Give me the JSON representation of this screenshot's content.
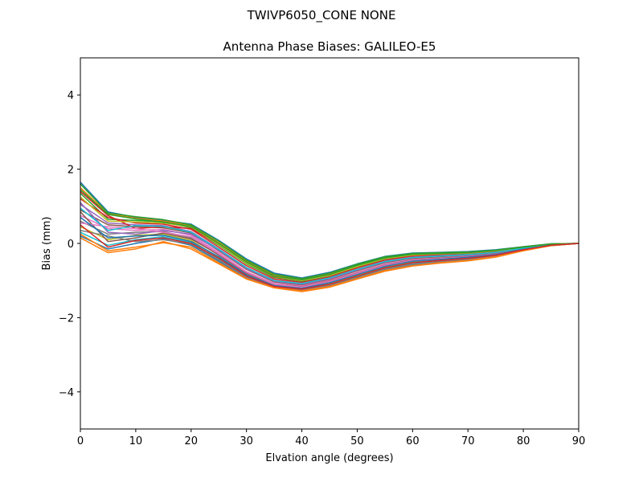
{
  "chart_data": {
    "type": "line",
    "suptitle": "TWIVP6050_CONE  NONE",
    "title": "Antenna Phase Biases: GALILEO-E5",
    "xlabel": "Elvation angle (degrees)",
    "ylabel": "Bias (mm)",
    "xlim": [
      0,
      90
    ],
    "ylim": [
      -5,
      5
    ],
    "xticks": [
      "0",
      "10",
      "20",
      "30",
      "40",
      "50",
      "60",
      "70",
      "80",
      "90"
    ],
    "yticks": [
      "−4",
      "−2",
      "0",
      "2",
      "4"
    ],
    "xtick_values": [
      0,
      10,
      20,
      30,
      40,
      50,
      60,
      70,
      80,
      90
    ],
    "ytick_values": [
      -4,
      -2,
      0,
      2,
      4
    ],
    "grid": false,
    "legend": "none",
    "x": [
      0,
      5,
      10,
      15,
      20,
      25,
      30,
      35,
      40,
      45,
      50,
      55,
      60,
      65,
      70,
      75,
      80,
      85,
      90
    ],
    "series": [
      {
        "values": [
          1.65,
          0.85,
          0.7,
          0.62,
          0.52,
          0.08,
          -0.42,
          -0.8,
          -0.93,
          -0.78,
          -0.55,
          -0.35,
          -0.26,
          -0.24,
          -0.22,
          -0.17,
          -0.09,
          -0.01,
          0.0
        ]
      },
      {
        "values": [
          1.5,
          0.8,
          0.68,
          0.6,
          0.48,
          0.02,
          -0.48,
          -0.86,
          -0.97,
          -0.82,
          -0.58,
          -0.38,
          -0.28,
          -0.26,
          -0.24,
          -0.19,
          -0.1,
          -0.02,
          0.0
        ]
      },
      {
        "values": [
          1.35,
          0.65,
          0.62,
          0.58,
          0.42,
          -0.05,
          -0.55,
          -0.92,
          -1.02,
          -0.87,
          -0.63,
          -0.42,
          -0.32,
          -0.29,
          -0.26,
          -0.21,
          -0.11,
          -0.02,
          0.0
        ]
      },
      {
        "values": [
          1.2,
          0.7,
          0.55,
          0.52,
          0.38,
          -0.1,
          -0.6,
          -0.96,
          -1.05,
          -0.9,
          -0.66,
          -0.45,
          -0.34,
          -0.31,
          -0.28,
          -0.22,
          -0.12,
          -0.03,
          0.0
        ]
      },
      {
        "values": [
          1.05,
          0.55,
          0.5,
          0.48,
          0.32,
          -0.15,
          -0.66,
          -1.0,
          -1.08,
          -0.93,
          -0.7,
          -0.48,
          -0.37,
          -0.33,
          -0.3,
          -0.24,
          -0.13,
          -0.03,
          0.0
        ]
      },
      {
        "values": [
          0.9,
          0.5,
          0.45,
          0.42,
          0.28,
          -0.2,
          -0.7,
          -1.04,
          -1.12,
          -0.97,
          -0.74,
          -0.52,
          -0.4,
          -0.36,
          -0.32,
          -0.26,
          -0.14,
          -0.04,
          0.0
        ]
      },
      {
        "values": [
          0.75,
          0.4,
          0.35,
          0.38,
          0.22,
          -0.25,
          -0.76,
          -1.08,
          -1.15,
          -1.0,
          -0.78,
          -0.56,
          -0.43,
          -0.39,
          -0.34,
          -0.28,
          -0.15,
          -0.04,
          0.0
        ]
      },
      {
        "values": [
          0.6,
          0.25,
          0.3,
          0.32,
          0.15,
          -0.32,
          -0.82,
          -1.12,
          -1.19,
          -1.04,
          -0.82,
          -0.6,
          -0.46,
          -0.41,
          -0.36,
          -0.29,
          -0.16,
          -0.05,
          0.0
        ]
      },
      {
        "values": [
          0.45,
          0.1,
          0.22,
          0.25,
          0.08,
          -0.38,
          -0.86,
          -1.15,
          -1.22,
          -1.08,
          -0.86,
          -0.64,
          -0.5,
          -0.44,
          -0.38,
          -0.31,
          -0.17,
          -0.05,
          0.0
        ]
      },
      {
        "values": [
          0.3,
          -0.05,
          0.1,
          0.18,
          0.02,
          -0.42,
          -0.9,
          -1.17,
          -1.25,
          -1.12,
          -0.9,
          -0.68,
          -0.54,
          -0.47,
          -0.41,
          -0.33,
          -0.18,
          -0.06,
          0.0
        ]
      },
      {
        "values": [
          0.2,
          -0.15,
          0.0,
          0.12,
          -0.05,
          -0.48,
          -0.93,
          -1.18,
          -1.27,
          -1.15,
          -0.93,
          -0.72,
          -0.58,
          -0.5,
          -0.44,
          -0.35,
          -0.19,
          -0.06,
          0.0
        ]
      },
      {
        "values": [
          0.15,
          -0.25,
          -0.15,
          0.05,
          -0.15,
          -0.55,
          -0.96,
          -1.2,
          -1.3,
          -1.18,
          -0.96,
          -0.75,
          -0.61,
          -0.53,
          -0.47,
          -0.37,
          -0.2,
          -0.06,
          0.0
        ]
      },
      {
        "values": [
          1.6,
          0.82,
          0.72,
          0.64,
          0.5,
          0.06,
          -0.45,
          -0.83,
          -0.95,
          -0.8,
          -0.56,
          -0.36,
          -0.27,
          -0.25,
          -0.23,
          -0.18,
          -0.09,
          -0.01,
          0.0
        ]
      },
      {
        "values": [
          1.4,
          0.75,
          0.4,
          0.45,
          0.4,
          -0.02,
          -0.52,
          -0.9,
          -1.0,
          -0.85,
          -0.6,
          -0.4,
          -0.3,
          -0.28,
          -0.25,
          -0.2,
          -0.1,
          -0.02,
          0.0
        ]
      },
      {
        "values": [
          1.1,
          0.3,
          0.25,
          0.35,
          0.25,
          -0.18,
          -0.68,
          -1.02,
          -1.1,
          -0.95,
          -0.72,
          -0.5,
          -0.38,
          -0.34,
          -0.31,
          -0.25,
          -0.13,
          -0.03,
          0.0
        ]
      },
      {
        "values": [
          0.85,
          0.05,
          0.15,
          0.28,
          0.12,
          -0.3,
          -0.8,
          -1.1,
          -1.17,
          -1.02,
          -0.8,
          -0.58,
          -0.45,
          -0.4,
          -0.35,
          -0.28,
          -0.15,
          -0.04,
          0.0
        ]
      },
      {
        "values": [
          0.55,
          0.45,
          0.4,
          0.3,
          0.18,
          -0.28,
          -0.78,
          -1.1,
          -1.18,
          -1.03,
          -0.81,
          -0.59,
          -0.46,
          -0.41,
          -0.36,
          -0.29,
          -0.16,
          -0.05,
          0.0
        ]
      },
      {
        "values": [
          0.35,
          0.2,
          0.05,
          0.1,
          -0.02,
          -0.45,
          -0.92,
          -1.17,
          -1.26,
          -1.13,
          -0.92,
          -0.7,
          -0.56,
          -0.49,
          -0.43,
          -0.34,
          -0.18,
          -0.06,
          0.0
        ]
      },
      {
        "values": [
          1.25,
          0.6,
          0.58,
          0.55,
          0.45,
          -0.03,
          -0.53,
          -0.89,
          -1.0,
          -0.86,
          -0.62,
          -0.41,
          -0.31,
          -0.28,
          -0.26,
          -0.2,
          -0.11,
          -0.02,
          0.0
        ]
      },
      {
        "values": [
          0.95,
          0.35,
          0.48,
          0.46,
          0.3,
          -0.16,
          -0.65,
          -1.0,
          -1.08,
          -0.93,
          -0.7,
          -0.49,
          -0.38,
          -0.34,
          -0.3,
          -0.24,
          -0.13,
          -0.03,
          0.0
        ]
      },
      {
        "values": [
          0.7,
          0.15,
          0.2,
          0.22,
          0.05,
          -0.36,
          -0.85,
          -1.14,
          -1.21,
          -1.06,
          -0.84,
          -0.62,
          -0.48,
          -0.43,
          -0.37,
          -0.3,
          -0.16,
          -0.05,
          0.0
        ]
      },
      {
        "values": [
          0.25,
          -0.2,
          -0.1,
          0.02,
          -0.1,
          -0.52,
          -0.95,
          -1.19,
          -1.28,
          -1.16,
          -0.95,
          -0.73,
          -0.6,
          -0.52,
          -0.46,
          -0.36,
          -0.19,
          -0.06,
          0.0
        ]
      },
      {
        "values": [
          1.45,
          0.78,
          0.66,
          0.57,
          0.46,
          0.0,
          -0.5,
          -0.88,
          -0.98,
          -0.84,
          -0.59,
          -0.39,
          -0.29,
          -0.27,
          -0.25,
          -0.19,
          -0.1,
          -0.02,
          0.0
        ]
      },
      {
        "values": [
          0.5,
          -0.1,
          0.08,
          0.15,
          0.0,
          -0.4,
          -0.88,
          -1.16,
          -1.23,
          -1.1,
          -0.88,
          -0.66,
          -0.52,
          -0.46,
          -0.4,
          -0.32,
          -0.17,
          -0.05,
          0.0
        ]
      }
    ],
    "colors": [
      "#1f77b4",
      "#ff7f0e",
      "#2ca02c",
      "#d62728",
      "#9467bd",
      "#8c564b",
      "#e377c2",
      "#7f7f7f",
      "#bcbd22",
      "#17becf"
    ]
  }
}
